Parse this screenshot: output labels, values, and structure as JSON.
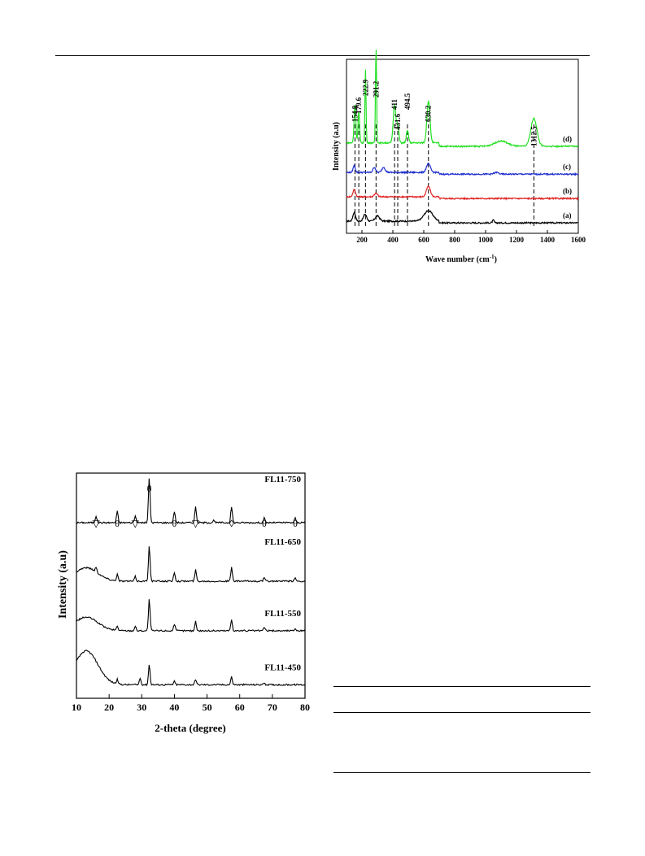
{
  "chart_data": [
    {
      "type": "line",
      "xlabel": "Wave number (cm",
      "xlabel_sup": "-1",
      "xlabel_suffix": ")",
      "ylabel": "Intensity (a.u)",
      "xlim": [
        100,
        1600
      ],
      "x_ticks": [
        200,
        400,
        600,
        800,
        1000,
        1200,
        1400,
        1600
      ],
      "y_ticks_shown": false,
      "grid": false,
      "legend": "labels at right end of each curve",
      "peak_labels": [
        "154.8",
        "179.6",
        "222.9",
        "291.2",
        "411",
        "431.6",
        "494.5",
        "630.2",
        "1312.5"
      ],
      "peak_positions": [
        154.8,
        179.6,
        222.9,
        291.2,
        411,
        431.6,
        494.5,
        630.2,
        1312.5
      ],
      "series": [
        {
          "name": "(a)",
          "color": "#000000",
          "baseline": 0.06,
          "peaks": [
            [
              150,
              0.05,
              12
            ],
            [
              220,
              0.04,
              15
            ],
            [
              300,
              0.03,
              20
            ],
            [
              630,
              0.06,
              40
            ],
            [
              1050,
              0.015,
              8
            ]
          ]
        },
        {
          "name": "(b)",
          "color": "#e02020",
          "baseline": 0.2,
          "peaks": [
            [
              150,
              0.04,
              12
            ],
            [
              290,
              0.02,
              15
            ],
            [
              630,
              0.06,
              18
            ]
          ]
        },
        {
          "name": "(c)",
          "color": "#1f2fd0",
          "baseline": 0.34,
          "peaks": [
            [
              150,
              0.04,
              10
            ],
            [
              280,
              0.03,
              12
            ],
            [
              340,
              0.03,
              15
            ],
            [
              630,
              0.05,
              18
            ],
            [
              1070,
              0.01,
              20
            ]
          ]
        },
        {
          "name": "(d)",
          "color": "#22e022",
          "baseline": 0.5,
          "peaks": [
            [
              154.8,
              0.22,
              8
            ],
            [
              179.6,
              0.18,
              7
            ],
            [
              222.9,
              0.42,
              5
            ],
            [
              291.2,
              0.55,
              5
            ],
            [
              411,
              0.22,
              12
            ],
            [
              431.6,
              0.1,
              10
            ],
            [
              494.5,
              0.07,
              10
            ],
            [
              630.2,
              0.24,
              14
            ],
            [
              1100,
              0.03,
              60
            ],
            [
              1312.5,
              0.16,
              28
            ]
          ]
        }
      ]
    },
    {
      "type": "line",
      "xlabel": "2-theta (degree)",
      "ylabel": "Intensity (a.u)",
      "xlim": [
        10,
        80
      ],
      "x_ticks": [
        10,
        20,
        30,
        40,
        50,
        60,
        70,
        80
      ],
      "y_ticks_shown": false,
      "grid": false,
      "legend": "labels at right of each pattern",
      "markers": [
        {
          "symbol": "▽",
          "x": 16
        },
        {
          "symbol": "θ",
          "x": 22.5
        },
        {
          "symbol": "▽",
          "x": 28
        },
        {
          "symbol": "θ",
          "x": 32.3
        },
        {
          "symbol": "θ",
          "x": 40
        },
        {
          "symbol": "▽",
          "x": 46.5
        },
        {
          "symbol": "◊",
          "x": 57.5
        },
        {
          "symbol": "θ",
          "x": 67.5
        },
        {
          "symbol": "θ",
          "x": 77
        }
      ],
      "series": [
        {
          "name": "FL11-750",
          "baseline": 0.78,
          "hump": 0.0,
          "peaks": [
            [
              16,
              0.03
            ],
            [
              22.5,
              0.05
            ],
            [
              28,
              0.03
            ],
            [
              32.3,
              0.2
            ],
            [
              40,
              0.05
            ],
            [
              46.5,
              0.07
            ],
            [
              52,
              0.01
            ],
            [
              57.5,
              0.07
            ],
            [
              67.5,
              0.02
            ],
            [
              77,
              0.02
            ]
          ]
        },
        {
          "name": "FL11-650",
          "baseline": 0.52,
          "hump": 0.06,
          "peaks": [
            [
              16,
              0.02
            ],
            [
              22.5,
              0.03
            ],
            [
              28,
              0.02
            ],
            [
              32.3,
              0.16
            ],
            [
              40,
              0.04
            ],
            [
              46.5,
              0.05
            ],
            [
              57.5,
              0.06
            ],
            [
              67.5,
              0.015
            ],
            [
              77,
              0.015
            ]
          ]
        },
        {
          "name": "FL11-550",
          "baseline": 0.3,
          "hump": 0.06,
          "peaks": [
            [
              22.5,
              0.02
            ],
            [
              28,
              0.02
            ],
            [
              32.3,
              0.14
            ],
            [
              40,
              0.03
            ],
            [
              46.5,
              0.04
            ],
            [
              57.5,
              0.05
            ],
            [
              67.5,
              0.015
            ],
            [
              77,
              0.01
            ]
          ]
        },
        {
          "name": "FL11-450",
          "baseline": 0.06,
          "hump": 0.15,
          "peaks": [
            [
              22.5,
              0.02
            ],
            [
              29.5,
              0.03
            ],
            [
              32.3,
              0.09
            ],
            [
              40,
              0.015
            ],
            [
              46.5,
              0.025
            ],
            [
              57.5,
              0.035
            ],
            [
              67.5,
              0.01
            ]
          ]
        }
      ]
    }
  ]
}
